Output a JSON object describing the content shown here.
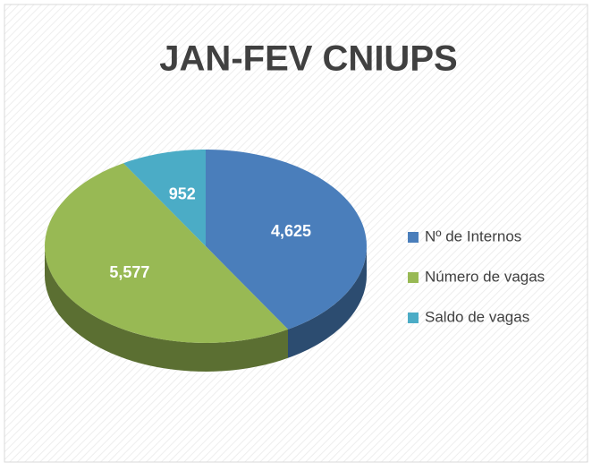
{
  "chart_data": {
    "type": "pie",
    "title": "JAN-FEV CNIUPS",
    "categories": [
      "Nº de Internos",
      "Número de vagas",
      "Saldo de vagas"
    ],
    "values": [
      4625,
      5577,
      952
    ],
    "value_labels": [
      "4,625",
      "5,577",
      "952"
    ],
    "colors": [
      "#4a7ebb",
      "#98b954",
      "#4bacc6"
    ],
    "legend": "right"
  }
}
